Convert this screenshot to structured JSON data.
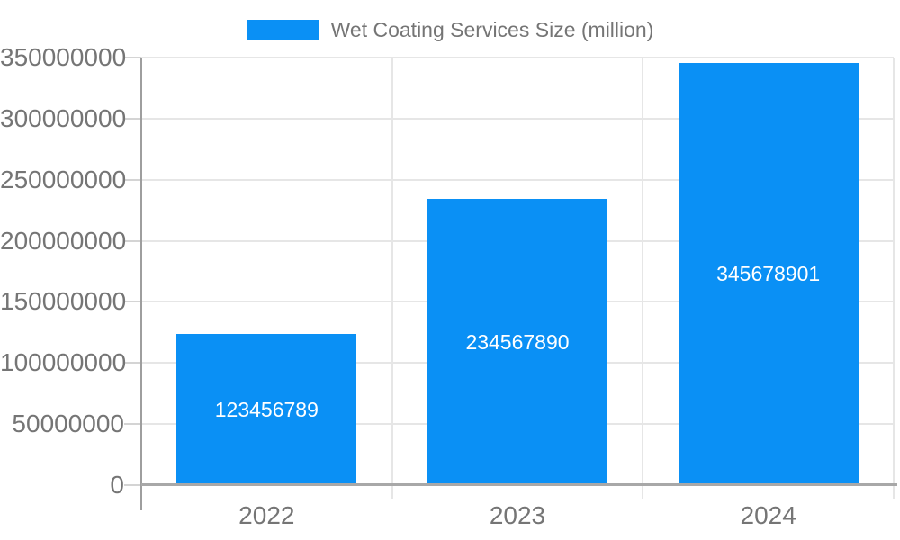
{
  "legend": {
    "label": "Wet Coating Services Size (million)",
    "position": "top-center"
  },
  "chart_data": {
    "type": "bar",
    "title": "Wet Coating Services Size (million)",
    "categories": [
      "2022",
      "2023",
      "2024"
    ],
    "values": [
      123456789,
      234567890,
      345678901
    ],
    "bar_labels": [
      "123456789",
      "234567890",
      "345678901"
    ],
    "xlabel": "",
    "ylabel": "",
    "ylim": [
      0,
      350000000
    ],
    "ytick_step": 50000000,
    "ytick_labels": [
      "0",
      "50000000",
      "100000000",
      "150000000",
      "200000000",
      "250000000",
      "300000000",
      "350000000"
    ],
    "grid": true,
    "legend_position": "top-center",
    "colors": {
      "bar": "#0a90f5",
      "bar_label_text": "#ffffff",
      "axis_text": "#757575",
      "legend_text": "#757575",
      "gridline": "#e6e6e6",
      "tick": "#d4d4d4",
      "axis_line": "#9e9e9e",
      "baseline": "#a8a8a8",
      "background": "#ffffff"
    }
  }
}
